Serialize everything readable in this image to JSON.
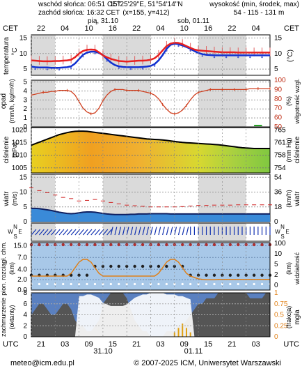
{
  "header": {
    "sunrise": "wschód słońca: 06:51 CET",
    "sunset": "zachód słońca: 16:32 CET",
    "coords": "15°25'29\"E, 51°54'14\"N",
    "grid": "(x=155, y=412)",
    "elev_title": "wysokość (min, środek, max)",
    "elev_values": "54 - 115 - 131 m"
  },
  "top_axis": {
    "left_tz": "CET",
    "right_tz": "CET",
    "day1": "pią, 31.10",
    "day2": "sob, 01.11",
    "hours": [
      "22",
      "04",
      "10",
      "16",
      "22",
      "04",
      "10",
      "16",
      "22",
      "04"
    ]
  },
  "bottom_axis": {
    "left_tz": "UTC",
    "right_tz": "UTC",
    "hours": [
      "21",
      "03",
      "09",
      "15",
      "21",
      "03",
      "09",
      "15",
      "21",
      "03"
    ],
    "date1": "31.10",
    "date2": "01.11"
  },
  "footer": {
    "email": "meteo@icm.edu.pl",
    "copyright": "© 2007-2025 ICM, Uniwersytet Warszawski"
  },
  "panels": {
    "temp": {
      "left_label": "temperatura",
      "left_unit": "°C",
      "right_unit": "(°C)",
      "left_ticks": [
        "15",
        "10",
        "5"
      ],
      "right_ticks": [
        "15",
        "10",
        "5"
      ]
    },
    "precip": {
      "left_label": "opad",
      "left_unit": "(mm/h, kg/m²/h)",
      "right_label": "wilgotność wzgl.",
      "right_unit": "(%)",
      "left_ticks": [
        "5",
        "4",
        "3",
        "2",
        "1",
        "0"
      ],
      "right_ticks": [
        "100",
        "90",
        "80",
        "70",
        "60",
        "50"
      ]
    },
    "pressure": {
      "left_label": "ciśnienie",
      "left_unit": "(hPa)",
      "right_label": "ciśnienie",
      "right_unit": "(mm Hg)",
      "left_ticks": [
        "1020",
        "1015",
        "1010",
        "1005"
      ],
      "right_ticks": [
        "765",
        "761",
        "758",
        "754"
      ]
    },
    "wind": {
      "left_label": "wiatr",
      "left_unit": "(m/s)",
      "right_label": "wiatr",
      "right_unit": "(km/h)",
      "left_ticks": [
        "15",
        "10",
        "5",
        "0"
      ],
      "right_ticks": [
        "54",
        "36",
        "18",
        "0"
      ]
    },
    "winddir": {
      "left_compass": [
        "N",
        "W",
        "E",
        "S"
      ],
      "right_compass": [
        "N",
        "W",
        "E",
        "S"
      ]
    },
    "cloud": {
      "left_label": "pion. rozciągł. chm.",
      "left_unit": "(km)",
      "right_label": "widzialność",
      "right_unit": "(km)",
      "left_ticks": [
        "15.0",
        "7.0",
        "4.0",
        "2.0",
        "0.0"
      ],
      "right_ticks": [
        "100",
        "10",
        "5",
        "2",
        "0"
      ]
    },
    "cover": {
      "left_label": "zachmurzenie",
      "left_unit": "(oktanty)",
      "right_label": "mgła",
      "right_unit": "(frakcja)",
      "left_ticks": [
        "8",
        "6",
        "4",
        "2",
        "0"
      ],
      "right_ticks": [
        "1",
        "0.75",
        "0.5",
        "0.25",
        "0"
      ]
    }
  },
  "chart_data": {
    "type": "line",
    "x_hours_cet": [
      22,
      23,
      0,
      1,
      2,
      3,
      4,
      5,
      6,
      7,
      8,
      9,
      10,
      11,
      12,
      13,
      14,
      15,
      16,
      17,
      18,
      19,
      20,
      21,
      22,
      23,
      0,
      1,
      2,
      3,
      4,
      5,
      6,
      7,
      8,
      9,
      10,
      11,
      12,
      13,
      14,
      15,
      16,
      17,
      18,
      19,
      20,
      21,
      22,
      23,
      0,
      1,
      2,
      3,
      4,
      5,
      6,
      7,
      8,
      9,
      10
    ],
    "temperature_c": [
      7.8,
      7.7,
      7.6,
      7.5,
      7.5,
      7.5,
      7.6,
      7.6,
      7.7,
      7.8,
      8.0,
      8.8,
      10.0,
      10.8,
      11.2,
      11.3,
      11.2,
      10.4,
      9.4,
      8.8,
      8.3,
      7.9,
      7.6,
      7.5,
      7.4,
      7.5,
      7.6,
      7.7,
      7.7,
      7.8,
      8.0,
      8.5,
      9.5,
      11.0,
      12.4,
      13.2,
      13.5,
      13.4,
      13.0,
      12.4,
      11.8,
      11.3,
      11.0,
      10.9,
      10.8,
      10.7,
      10.6,
      10.5,
      10.4,
      10.4,
      10.4,
      10.4,
      10.3,
      10.3,
      10.3,
      10.3,
      10.3,
      10.3,
      10.3,
      10.3,
      10.3
    ],
    "dew_point_c": [
      5.8,
      5.6,
      5.5,
      5.5,
      5.5,
      5.4,
      5.4,
      5.4,
      5.5,
      5.6,
      5.9,
      6.8,
      8.2,
      9.6,
      10.3,
      10.6,
      10.6,
      10.2,
      9.5,
      8.2,
      7.1,
      6.3,
      5.9,
      5.7,
      5.6,
      5.6,
      5.6,
      5.6,
      5.7,
      5.8,
      6.0,
      6.6,
      7.8,
      9.5,
      11.5,
      12.8,
      13.2,
      13.0,
      12.6,
      12.1,
      11.5,
      10.8,
      10.2,
      9.8,
      9.6,
      9.5,
      9.4,
      9.4,
      9.4,
      9.4,
      9.4,
      9.4,
      9.4,
      9.4,
      9.4,
      9.4,
      9.4,
      9.4,
      9.4,
      9.4,
      9.4
    ],
    "relative_humidity_pct": [
      84,
      85,
      86,
      87,
      87,
      88,
      88,
      89,
      89,
      89,
      88,
      84,
      77,
      70,
      66,
      64,
      65,
      70,
      78,
      84,
      88,
      90,
      90,
      90,
      89,
      89,
      89,
      89,
      88,
      87,
      86,
      84,
      80,
      74,
      69,
      65,
      64,
      65,
      68,
      73,
      79,
      84,
      87,
      88,
      89,
      90,
      90,
      90,
      90,
      90,
      90,
      90,
      90,
      90,
      90,
      91,
      91,
      91,
      91,
      91,
      91
    ],
    "pressure_hpa": [
      1014.0,
      1014.6,
      1015.2,
      1015.8,
      1016.4,
      1017.0,
      1017.6,
      1018.2,
      1018.6,
      1019.0,
      1019.3,
      1019.5,
      1019.6,
      1019.6,
      1019.5,
      1019.3,
      1019.1,
      1018.9,
      1018.7,
      1018.5,
      1018.3,
      1018.1,
      1017.9,
      1017.7,
      1017.5,
      1017.3,
      1017.1,
      1016.9,
      1016.7,
      1016.5,
      1016.4,
      1016.3,
      1016.2,
      1016.1,
      1015.9,
      1015.7,
      1015.5,
      1015.3,
      1015.1,
      1015.0,
      1014.9,
      1014.8,
      1014.7,
      1014.6,
      1014.5,
      1014.4,
      1014.3,
      1014.2,
      1014.0,
      1013.8,
      1013.6,
      1013.4,
      1013.2,
      1013.0,
      1012.9,
      1012.8,
      1012.7,
      1012.7,
      1012.7,
      1012.7,
      1012.7
    ],
    "wind_gust_ms": [
      11.5,
      11.0,
      10.5,
      10.0,
      9.8,
      9.5,
      9.0,
      8.5,
      8.2,
      8.0,
      7.8,
      7.5,
      7.0,
      7.0,
      7.2,
      7.4,
      7.5,
      7.3,
      7.0,
      6.8,
      6.5,
      6.3,
      6.0,
      5.8,
      5.6,
      5.5,
      5.4,
      5.3,
      5.2,
      5.1,
      5.0,
      5.0,
      5.0,
      5.0,
      5.0,
      5.0,
      5.0,
      5.0,
      5.1,
      5.2,
      5.3,
      5.4,
      5.5,
      5.5,
      5.5,
      5.6,
      5.6,
      5.6,
      5.6,
      5.6,
      5.6,
      5.6,
      5.7,
      5.7,
      5.7,
      5.7,
      5.7,
      5.7,
      5.7,
      5.7,
      5.7
    ],
    "wind_speed_ms": [
      4.5,
      4.5,
      4.4,
      4.2,
      4.0,
      3.8,
      3.5,
      3.2,
      3.0,
      2.8,
      2.7,
      2.8,
      3.0,
      3.2,
      3.3,
      3.3,
      3.2,
      3.0,
      2.8,
      2.6,
      2.5,
      2.4,
      2.4,
      2.4,
      2.4,
      2.5,
      2.5,
      2.6,
      2.6,
      2.6,
      2.7,
      2.7,
      2.7,
      2.7,
      2.7,
      2.6,
      2.6,
      2.6,
      2.6,
      2.6,
      2.6,
      2.6,
      2.6,
      2.6,
      2.6,
      2.6,
      2.6,
      2.6,
      2.6,
      2.6,
      2.6,
      2.6,
      2.6,
      2.6,
      2.6,
      2.6,
      2.6,
      2.6,
      2.6,
      2.6,
      2.6
    ],
    "visibility_km": [
      3.0,
      3.0,
      3.0,
      3.0,
      3.0,
      3.0,
      3.0,
      3.0,
      3.0,
      3.0,
      4.0,
      6.0,
      8.0,
      9.0,
      9.0,
      8.0,
      6.0,
      4.0,
      3.0,
      3.0,
      3.0,
      3.0,
      3.0,
      3.0,
      3.0,
      3.0,
      3.0,
      3.0,
      3.0,
      3.0,
      3.0,
      3.0,
      4.0,
      6.0,
      8.0,
      9.0,
      9.0,
      8.0,
      6.0,
      4.0,
      3.0,
      2.5,
      2.0,
      1.8,
      1.7,
      1.7,
      1.7,
      1.8,
      1.8,
      1.8,
      1.8,
      1.8,
      1.8,
      1.8,
      1.8,
      1.8,
      1.8,
      1.8,
      1.8,
      1.8,
      1.8
    ],
    "cloud_cover_octants": [
      4,
      5,
      6,
      6,
      5,
      4,
      4,
      5,
      6,
      6,
      5,
      3,
      2,
      2,
      1,
      1,
      2,
      3,
      6,
      7,
      8,
      8,
      8,
      8,
      7,
      5,
      3,
      2,
      1,
      1,
      0,
      0,
      0,
      0,
      1,
      1,
      1,
      2,
      2,
      3,
      4,
      5,
      6,
      6,
      7,
      7,
      7,
      8,
      8,
      8,
      8,
      8,
      8,
      8,
      8,
      7,
      7,
      7,
      7,
      8,
      8
    ],
    "fog_fraction": [
      0,
      0,
      0,
      0,
      0,
      0,
      0,
      0,
      0,
      0,
      0,
      0,
      0,
      0,
      0,
      0,
      0,
      0,
      0,
      0,
      0,
      0,
      0,
      0,
      0,
      0,
      0,
      0,
      0,
      0,
      0,
      0,
      0,
      0,
      0,
      0,
      0.1,
      0.2,
      0.3,
      0.2,
      0.1,
      0,
      0,
      0,
      0,
      0,
      0,
      0,
      0,
      0,
      0,
      0,
      0,
      0,
      0,
      0,
      0,
      0,
      0,
      0,
      0
    ],
    "colors": {
      "temperature": "#e82020",
      "dew_point": "#1030d0",
      "humidity": "#d04020",
      "pressure": "#000000",
      "wind_speed": "#1858a8",
      "wind_gust": "#d02020",
      "visibility": "#e08018",
      "cloud_bg": "#a8c8e8",
      "panel_night": "#dadada"
    }
  }
}
